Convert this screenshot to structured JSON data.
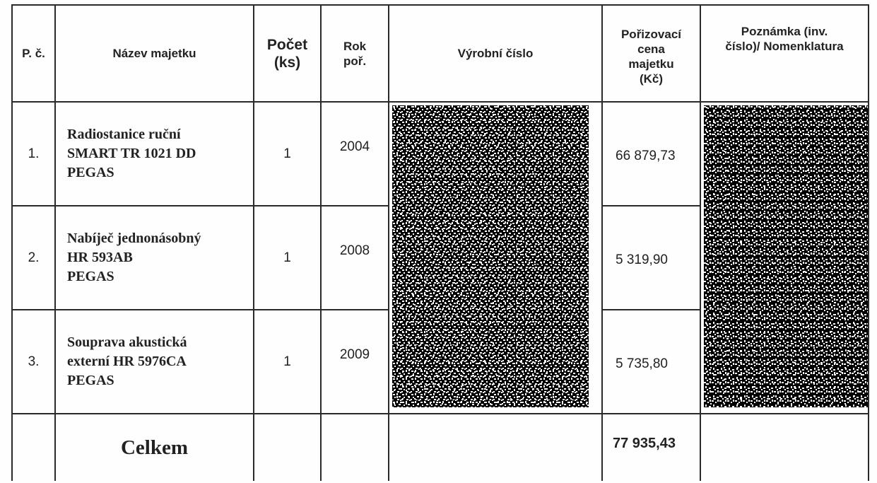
{
  "headers": {
    "pc": "P. č.",
    "nazev": "Název majetku",
    "pocet_1": "Počet",
    "pocet_2": "(ks)",
    "rok_1": "Rok",
    "rok_2": "poř.",
    "vyrobni": "Výrobní číslo",
    "cena_1": "Pořizovací",
    "cena_2": "cena",
    "cena_3": "majetku",
    "cena_4": "(Kč)",
    "pozn_1": "Poznámka (inv.",
    "pozn_2": "číslo)/ Nomenklatura"
  },
  "rows": [
    {
      "pc": "1.",
      "name_1": "Radiostanice ruční",
      "name_2": "SMART TR 1021 DD",
      "name_3": "PEGAS",
      "pocet": "1",
      "rok": "2004",
      "cena": "66 879,73"
    },
    {
      "pc": "2.",
      "name_1": "Nabíječ jednonásobný",
      "name_2": "HR 593AB",
      "name_3": "PEGAS",
      "pocet": "1",
      "rok": "2008",
      "cena": "5 319,90"
    },
    {
      "pc": "3.",
      "name_1": "Souprava akustická",
      "name_2": "externí HR 5976CA",
      "name_3": "PEGAS",
      "pocet": "1",
      "rok": "2009",
      "cena": "5 735,80"
    }
  ],
  "total": {
    "label": "Celkem",
    "value": "77 935,43"
  }
}
